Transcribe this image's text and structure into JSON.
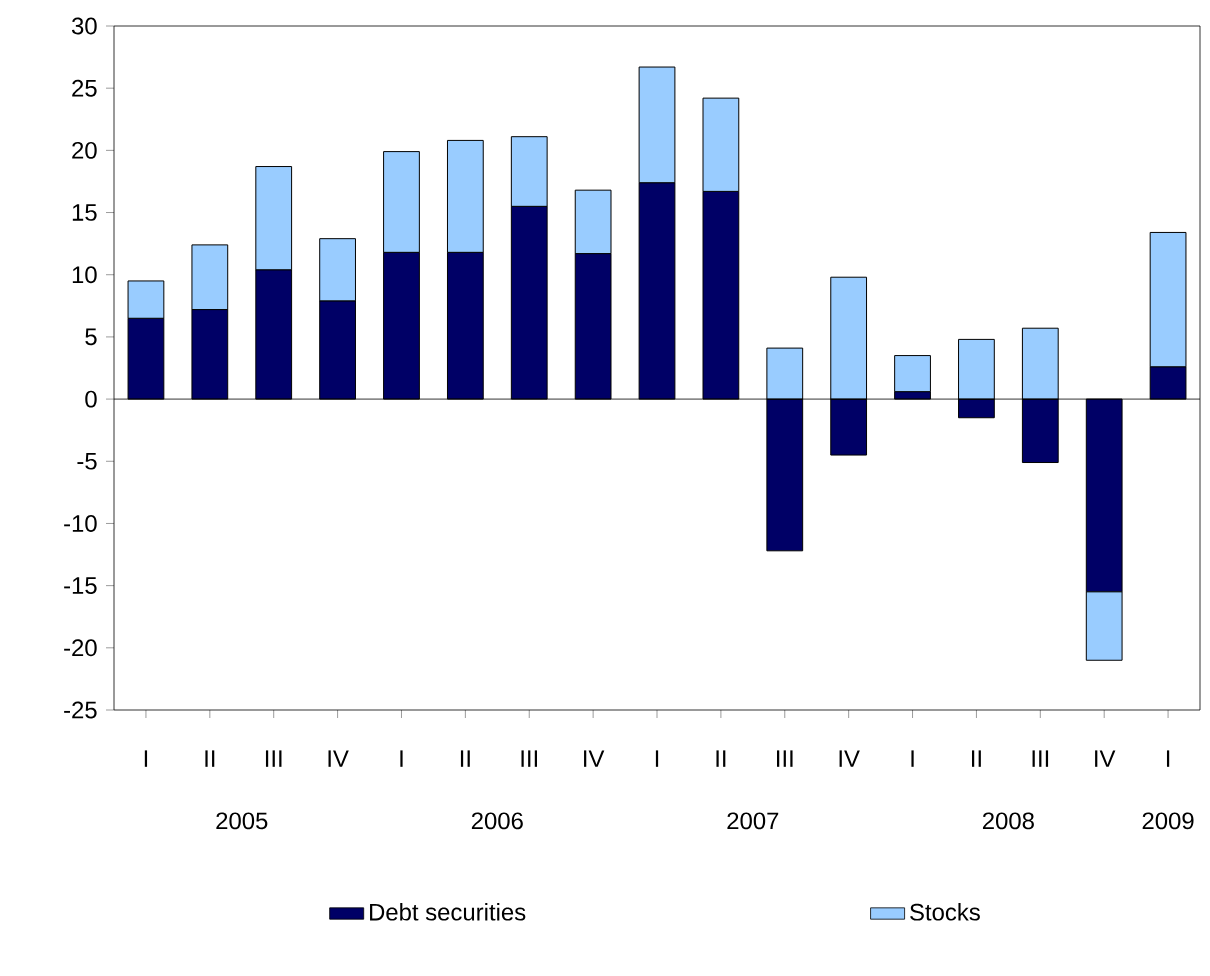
{
  "chart_data": {
    "type": "bar",
    "stacked": true,
    "categories": [
      "I",
      "II",
      "III",
      "IV",
      "I",
      "II",
      "III",
      "IV",
      "I",
      "II",
      "III",
      "IV",
      "I",
      "II",
      "III",
      "IV",
      "I"
    ],
    "series": [
      {
        "name": "Debt securities",
        "color": "#000066",
        "values": [
          6.5,
          7.2,
          10.4,
          7.9,
          11.8,
          11.8,
          15.5,
          11.7,
          17.4,
          16.7,
          -12.2,
          -4.5,
          0.6,
          -1.5,
          -5.1,
          -15.5,
          2.6
        ]
      },
      {
        "name": "Stocks",
        "color": "#99ccff",
        "values": [
          3.0,
          5.2,
          8.3,
          5.0,
          8.1,
          9.0,
          5.6,
          5.1,
          9.3,
          7.5,
          4.1,
          9.8,
          2.9,
          4.8,
          5.7,
          -5.5,
          10.8
        ]
      }
    ],
    "annotations": [
      "2005",
      "2006",
      "2007",
      "2008",
      "2009"
    ],
    "ylim": [
      -25,
      30
    ],
    "yticks": [
      -25,
      -20,
      -15,
      -10,
      -5,
      0,
      5,
      10,
      15,
      20,
      25,
      30
    ],
    "legend": "bottom"
  }
}
